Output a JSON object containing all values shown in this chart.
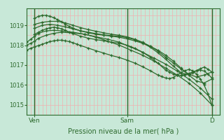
{
  "background_color": "#c8e8d8",
  "plot_bg_color": "#c8e8d8",
  "line_color": "#2d6a2d",
  "grid_color_v": "#f0b0b0",
  "grid_color_h": "#b0d8c8",
  "border_color": "#2d6a2d",
  "xlabel": "Pression niveau de la mer( hPa )",
  "xlabel_color": "#2d6a2d",
  "tick_color": "#2d6a2d",
  "axis_color": "#2d6a2d",
  "ylim": [
    1014.5,
    1019.85
  ],
  "yticks": [
    1015,
    1016,
    1017,
    1018,
    1019
  ],
  "xlim": [
    0,
    50
  ],
  "xtick_positions": [
    2,
    26,
    48
  ],
  "xtick_labels": [
    "Ven",
    "Sam",
    "D"
  ],
  "n_vgrid": 50,
  "series": [
    {
      "x": [
        0,
        1,
        2,
        3,
        5,
        7,
        9,
        12,
        15,
        18,
        21,
        24,
        27,
        30,
        33,
        36,
        39,
        42,
        45,
        48
      ],
      "y": [
        1018.0,
        1018.1,
        1018.2,
        1018.35,
        1018.5,
        1018.6,
        1018.65,
        1018.62,
        1018.55,
        1018.4,
        1018.2,
        1018.0,
        1017.75,
        1017.5,
        1017.2,
        1016.85,
        1016.5,
        1016.1,
        1015.6,
        1015.0
      ]
    },
    {
      "x": [
        0,
        1,
        2,
        3,
        5,
        7,
        9,
        12,
        15,
        18,
        21,
        24,
        27,
        30,
        33,
        36,
        39,
        42,
        45,
        48
      ],
      "y": [
        1018.15,
        1018.3,
        1018.45,
        1018.6,
        1018.72,
        1018.75,
        1018.72,
        1018.65,
        1018.55,
        1018.42,
        1018.3,
        1018.15,
        1017.9,
        1017.65,
        1017.35,
        1017.05,
        1016.7,
        1016.3,
        1015.85,
        1015.3
      ]
    },
    {
      "x": [
        2,
        3,
        4,
        5,
        6,
        7,
        8,
        9,
        10,
        11,
        12,
        14,
        16,
        18,
        20,
        22,
        24,
        26,
        28,
        30,
        32,
        34,
        36,
        38,
        40,
        42,
        44,
        46,
        48
      ],
      "y": [
        1019.35,
        1019.45,
        1019.5,
        1019.5,
        1019.45,
        1019.38,
        1019.28,
        1019.18,
        1019.05,
        1018.95,
        1018.85,
        1018.72,
        1018.62,
        1018.55,
        1018.5,
        1018.45,
        1018.4,
        1018.32,
        1018.22,
        1018.1,
        1017.95,
        1017.75,
        1017.5,
        1017.2,
        1016.85,
        1016.5,
        1016.2,
        1016.1,
        1016.3
      ]
    },
    {
      "x": [
        2,
        4,
        6,
        8,
        10,
        12,
        14,
        16,
        18,
        20,
        22,
        24,
        26,
        28,
        30,
        32,
        34,
        36,
        38,
        40,
        42,
        44,
        46,
        48
      ],
      "y": [
        1019.05,
        1019.15,
        1019.2,
        1019.2,
        1019.12,
        1019.0,
        1018.88,
        1018.78,
        1018.7,
        1018.62,
        1018.55,
        1018.5,
        1018.42,
        1018.3,
        1018.15,
        1017.95,
        1017.7,
        1017.4,
        1017.1,
        1016.8,
        1016.55,
        1016.4,
        1016.5,
        1016.65
      ]
    },
    {
      "x": [
        2,
        4,
        6,
        8,
        10,
        12,
        14,
        16,
        18,
        20,
        22,
        24,
        26,
        28,
        30,
        32,
        34,
        36,
        38,
        40,
        41,
        42,
        43,
        44,
        45,
        46,
        47,
        48
      ],
      "y": [
        1018.85,
        1019.0,
        1019.05,
        1019.0,
        1018.92,
        1018.82,
        1018.72,
        1018.65,
        1018.58,
        1018.52,
        1018.48,
        1018.45,
        1018.38,
        1018.28,
        1018.12,
        1017.9,
        1017.62,
        1017.3,
        1016.95,
        1016.62,
        1016.55,
        1016.52,
        1016.6,
        1016.72,
        1016.82,
        1016.9,
        1016.8,
        1016.65
      ]
    },
    {
      "x": [
        2,
        3,
        4,
        5,
        6,
        7,
        8,
        9,
        10,
        11,
        12,
        14,
        16,
        18,
        20,
        22,
        24,
        26,
        28,
        30,
        32,
        34,
        36,
        37,
        38,
        39,
        40,
        41,
        42,
        43,
        44,
        45,
        46,
        47,
        48
      ],
      "y": [
        1018.55,
        1018.65,
        1018.75,
        1018.82,
        1018.88,
        1018.9,
        1018.88,
        1018.82,
        1018.75,
        1018.65,
        1018.58,
        1018.45,
        1018.35,
        1018.28,
        1018.22,
        1018.15,
        1018.1,
        1018.0,
        1017.85,
        1017.65,
        1017.4,
        1017.1,
        1016.75,
        1016.65,
        1016.55,
        1016.5,
        1016.48,
        1016.52,
        1016.58,
        1016.65,
        1016.72,
        1016.75,
        1016.7,
        1016.55,
        1016.35
      ]
    },
    {
      "x": [
        0,
        1,
        2,
        3,
        4,
        5,
        6,
        7,
        8,
        9,
        10,
        11,
        12,
        13,
        14,
        16,
        18,
        20,
        22,
        24,
        26,
        28,
        30,
        32,
        34,
        35,
        36,
        37,
        38,
        39,
        40,
        41,
        42,
        43,
        44,
        45,
        46,
        47,
        48
      ],
      "y": [
        1017.75,
        1017.85,
        1017.92,
        1017.98,
        1018.05,
        1018.12,
        1018.18,
        1018.22,
        1018.25,
        1018.25,
        1018.22,
        1018.18,
        1018.12,
        1018.05,
        1017.98,
        1017.85,
        1017.72,
        1017.6,
        1017.48,
        1017.38,
        1017.25,
        1017.1,
        1016.92,
        1016.72,
        1016.5,
        1016.42,
        1016.35,
        1016.32,
        1016.38,
        1016.5,
        1016.62,
        1016.72,
        1016.78,
        1016.72,
        1016.55,
        1016.3,
        1016.0,
        1015.55,
        1015.0
      ]
    }
  ]
}
